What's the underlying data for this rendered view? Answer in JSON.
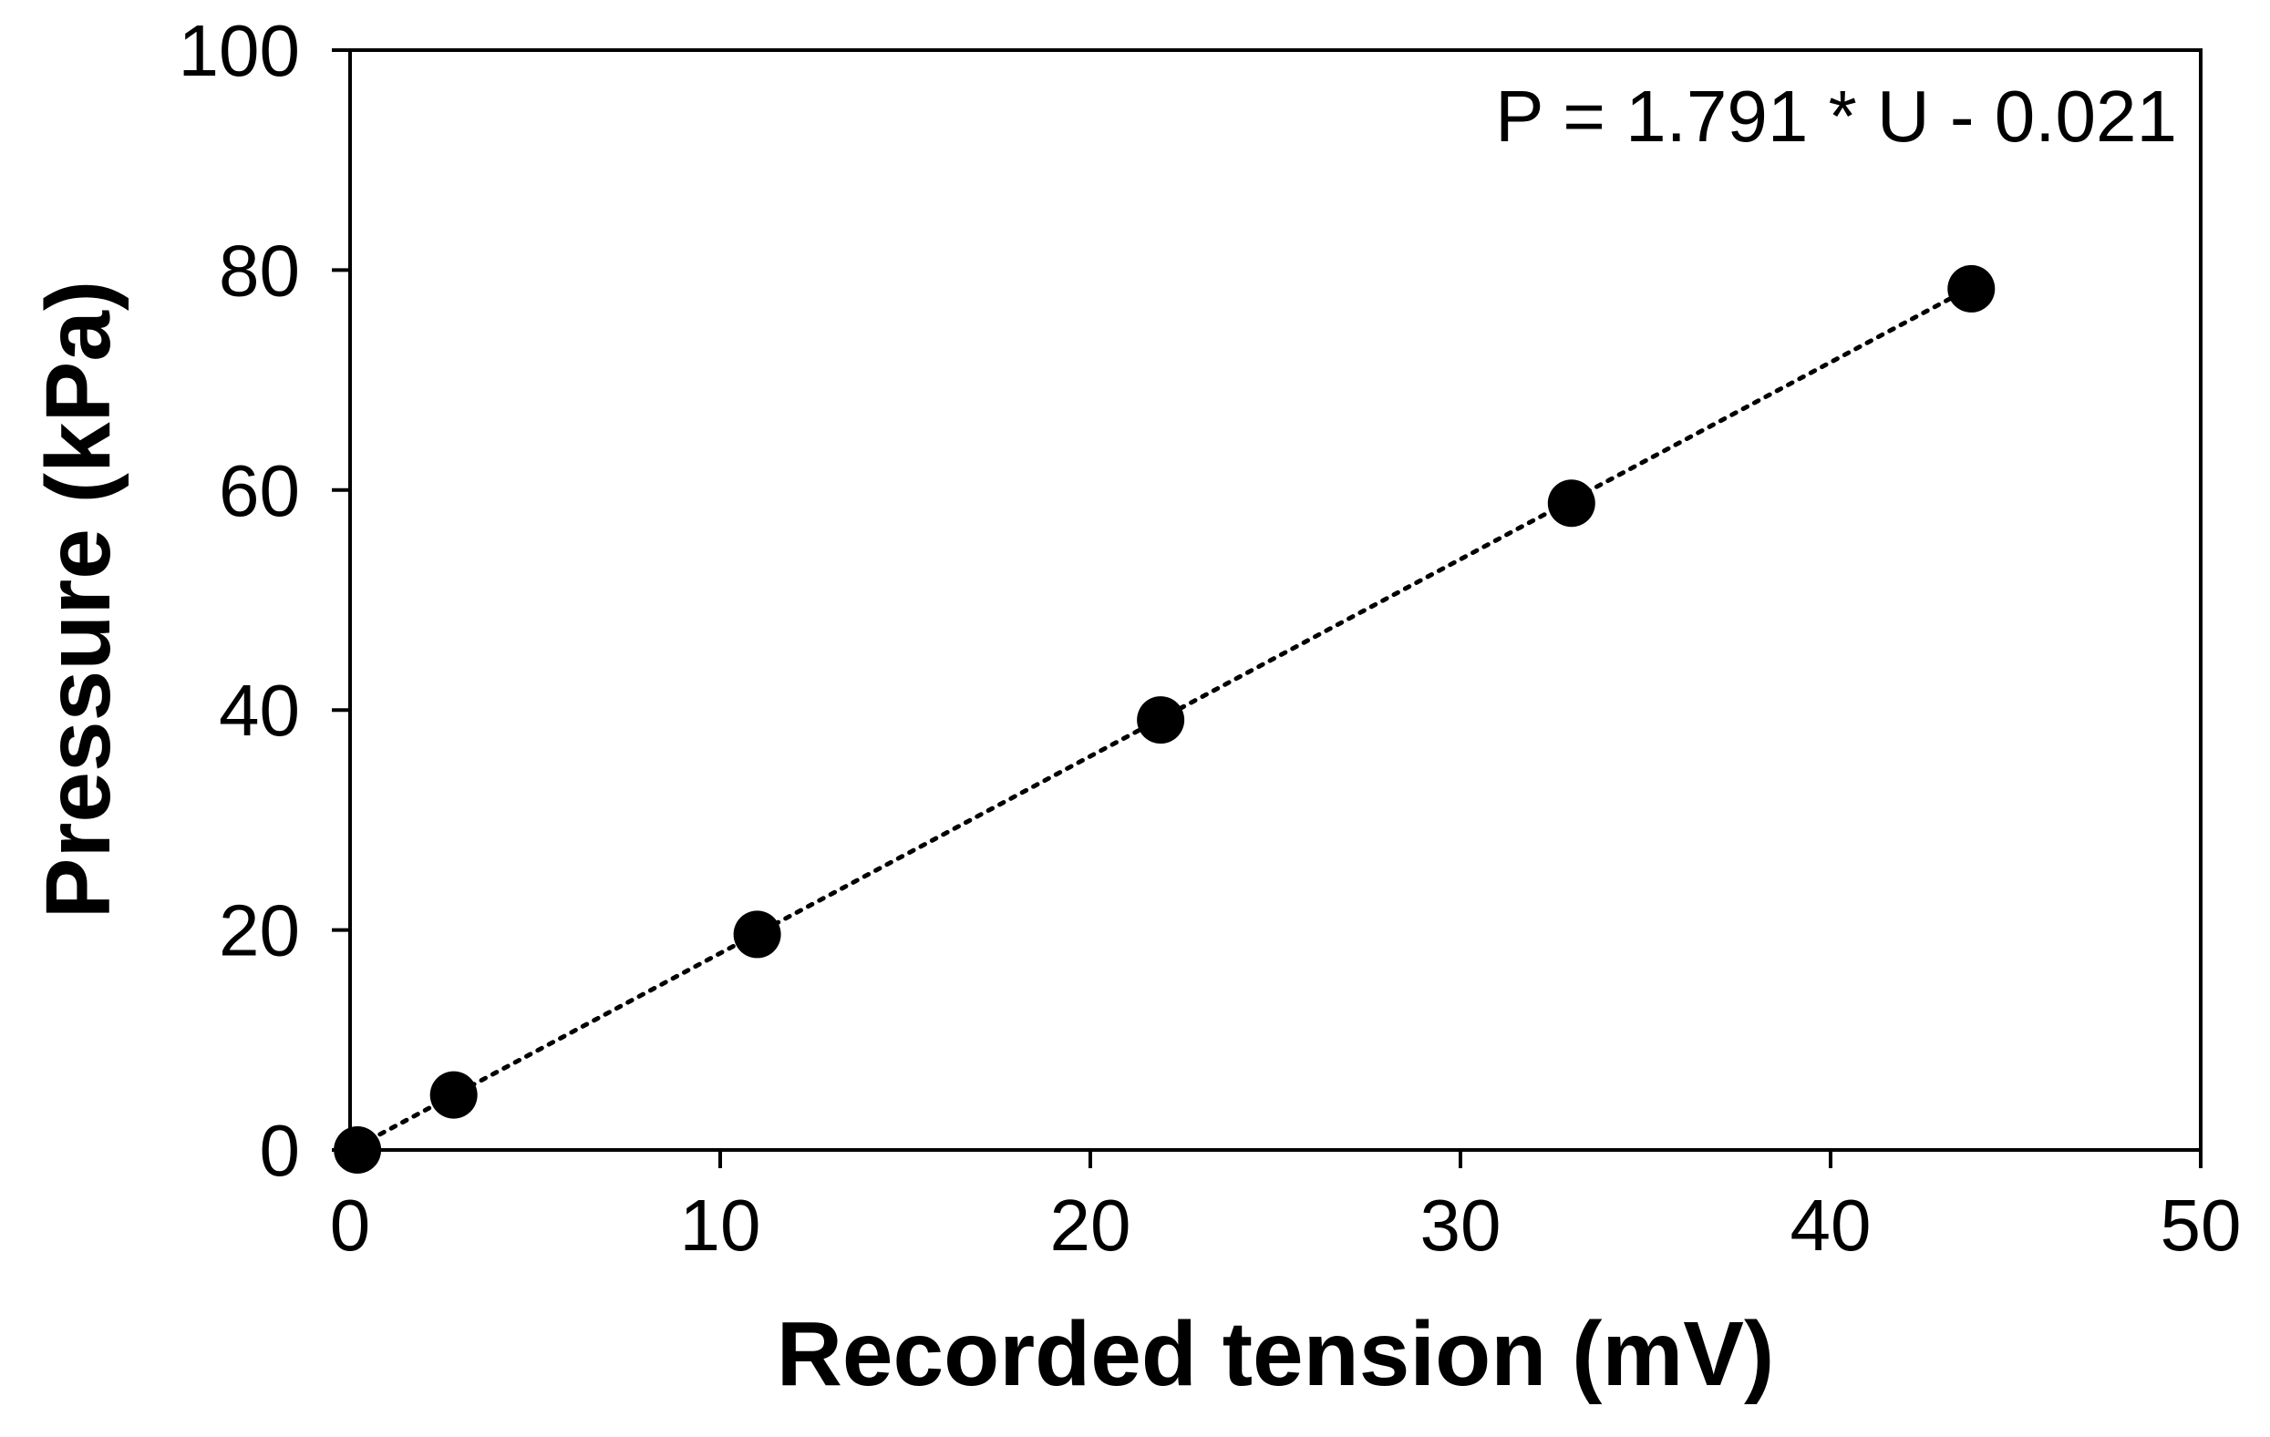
{
  "chart_data": {
    "type": "scatter",
    "xlabel": "Recorded tension (mV)",
    "ylabel": "Pressure (kPa)",
    "xlim": [
      0,
      50
    ],
    "ylim": [
      0,
      100
    ],
    "xticks": [
      "0",
      "10",
      "20",
      "30",
      "40",
      "50"
    ],
    "yticks": [
      "0",
      "20",
      "40",
      "60",
      "80",
      "100"
    ],
    "grid": false,
    "legend": "none",
    "annotation": "P = 1.791 * U - 0.021",
    "series": [
      {
        "x": [
          0.2,
          2.8,
          11.0,
          21.9,
          33.0,
          43.8
        ],
        "y": [
          0,
          5,
          19.6,
          39.1,
          58.8,
          78.3
        ],
        "marker_color": "#000000"
      }
    ],
    "trendline": {
      "style": "dotted",
      "slope": 1.791,
      "intercept": -0.021,
      "x_range": [
        0.2,
        43.8
      ]
    }
  }
}
